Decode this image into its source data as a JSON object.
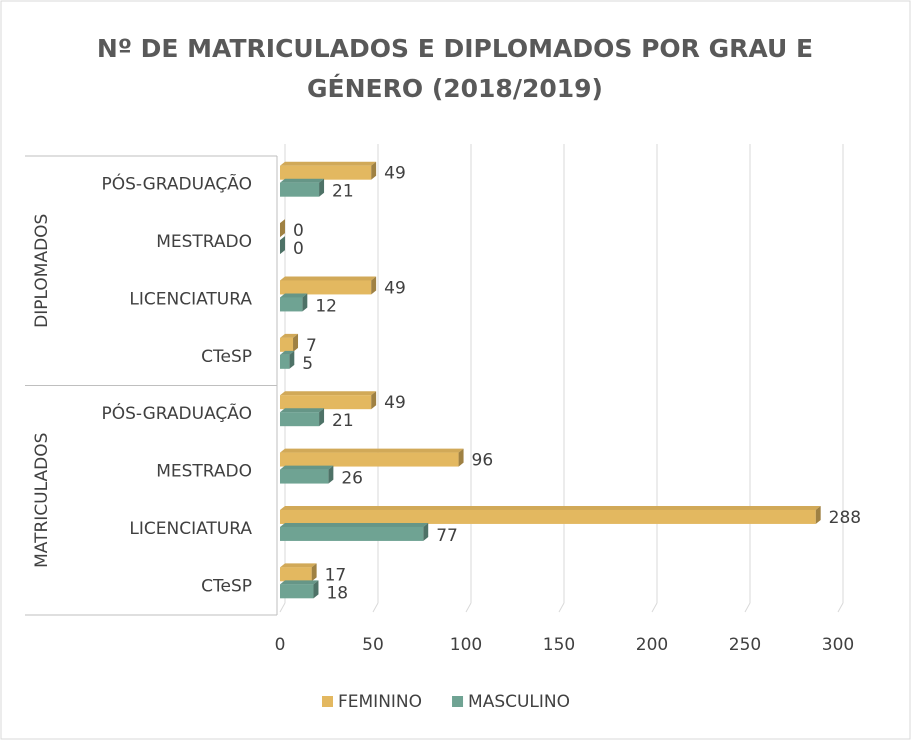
{
  "chart_data": {
    "type": "bar",
    "orientation": "horizontal",
    "title": [
      "Nº DE MATRICULADOS E DIPLOMADOS  POR GRAU E",
      "GÉNERO (2018/2019)"
    ],
    "groups": [
      {
        "label": "DIPLOMADOS",
        "categories": [
          "PÓS-GRADUAÇÃO",
          "MESTRADO",
          "LICENCIATURA",
          "CTeSP"
        ]
      },
      {
        "label": "MATRICULADOS",
        "categories": [
          "PÓS-GRADUAÇÃO",
          "MESTRADO",
          "LICENCIATURA",
          "CTeSP"
        ]
      }
    ],
    "series": [
      {
        "name": "FEMININO",
        "color": "#e3b860",
        "values": [
          49,
          0,
          49,
          7,
          49,
          96,
          288,
          17
        ]
      },
      {
        "name": "MASCULINO",
        "color": "#6fa393",
        "values": [
          21,
          0,
          12,
          5,
          21,
          26,
          77,
          18
        ]
      }
    ],
    "xlim": [
      0,
      300
    ],
    "xticks": [
      0,
      50,
      100,
      150,
      200,
      250,
      300
    ],
    "grid": true,
    "legend": "bottom"
  }
}
